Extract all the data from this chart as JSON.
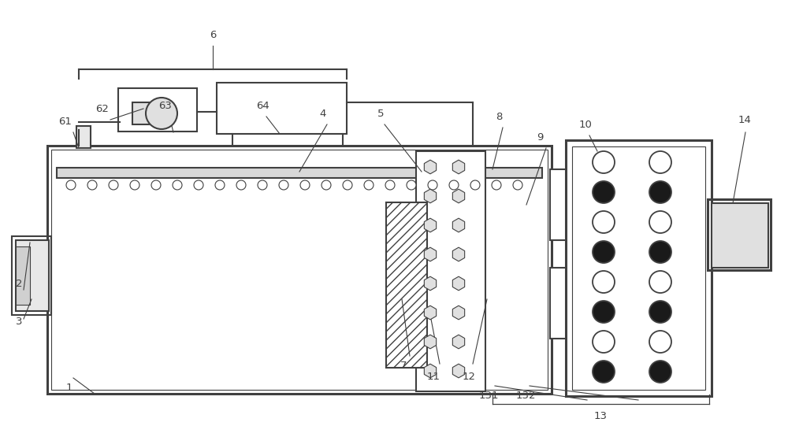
{
  "bg_color": "#ffffff",
  "lc": "#404040",
  "lw": 1.5,
  "tlw": 0.8,
  "thw": 2.2,
  "fs": 9.5,
  "fig_w": 10.0,
  "fig_h": 5.41
}
